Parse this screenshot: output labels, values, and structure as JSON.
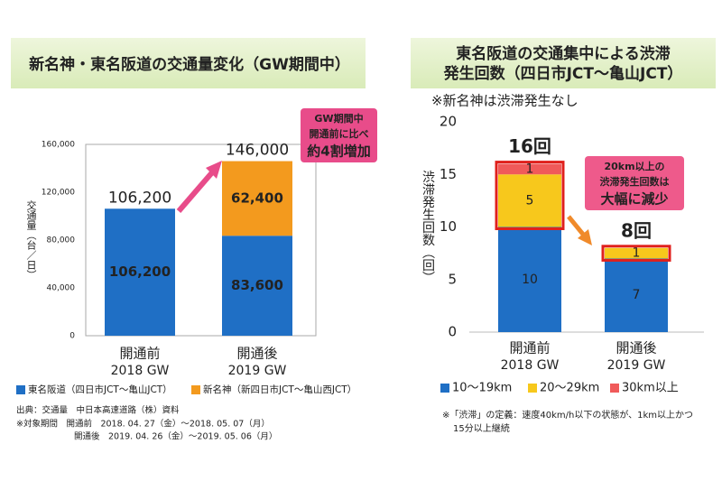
{
  "chart_data": [
    {
      "type": "bar",
      "stacked": true,
      "title": [
        "新名神・東名阪道の交通量変化（GW期間中）"
      ],
      "y_label": "交通量（台／日）",
      "categories": [
        "開通前",
        "開通後"
      ],
      "category_sublabels": [
        "2018 GW",
        "2019 GW"
      ],
      "series": [
        {
          "name": "東名阪道（四日市JCT～亀山JCT）",
          "color": "#1f6fc5",
          "values": [
            106200,
            83600
          ],
          "value_labels": [
            "106,200",
            "83,600"
          ]
        },
        {
          "name": "新名神（新四日市JCT～亀山西JCT）",
          "color": "#f39a1e",
          "values": [
            null,
            62400
          ],
          "value_labels": [
            null,
            "62,400"
          ]
        }
      ],
      "totals": [
        106200,
        146000
      ],
      "total_labels": [
        "106,200",
        "146,000"
      ],
      "ylim": [
        0,
        160000
      ],
      "yticks": [
        0,
        {
          "value": 40000,
          "label": "40,000"
        },
        {
          "value": 80000,
          "label": "80,000"
        },
        {
          "value": 120000,
          "label": "120,000"
        },
        {
          "value": 160000,
          "label": "160,000"
        }
      ],
      "grid": false,
      "annotation": [
        "GW期間中",
        "開通前に比べ",
        "約4割増加"
      ],
      "notes": [
        "出典：交通量　中日本高速道路（株）資料",
        "※対象期間　開通前　2018. 04. 27（金）～2018. 05. 07（月）",
        "開通後　2019. 04. 26（金）～2019. 05. 06（月）"
      ]
    },
    {
      "type": "bar",
      "stacked": true,
      "title": [
        "東名阪道の交通集中による渋滞",
        "発生回数（四日市JCT～亀山JCT）"
      ],
      "subtitle": "※新名神は渋滞発生なし",
      "y_label": "渋滞発生回数（回）",
      "categories": [
        "開通前",
        "開通後"
      ],
      "category_sublabels": [
        "2018 GW",
        "2019 GW"
      ],
      "series": [
        {
          "name": "10～19km",
          "color": "#1f6fc5",
          "values": [
            10,
            7
          ]
        },
        {
          "name": "20～29km",
          "color": "#f7c81c",
          "values": [
            5,
            1
          ]
        },
        {
          "name": "30km以上",
          "color": "#f05a5a",
          "values": [
            1,
            0
          ]
        }
      ],
      "totals": [
        16,
        8
      ],
      "total_labels": [
        "16回",
        "8回"
      ],
      "ylim": [
        0,
        20
      ],
      "yticks": [
        0,
        5,
        10,
        15,
        20
      ],
      "grid": false,
      "annotation": [
        "20km以上の",
        "渋滞発生回数は",
        "大幅に減少"
      ],
      "notes": [
        "※「渋滞」の定義：速度40km/h以下の状態が、1km以上かつ",
        "15分以上継続"
      ]
    }
  ]
}
